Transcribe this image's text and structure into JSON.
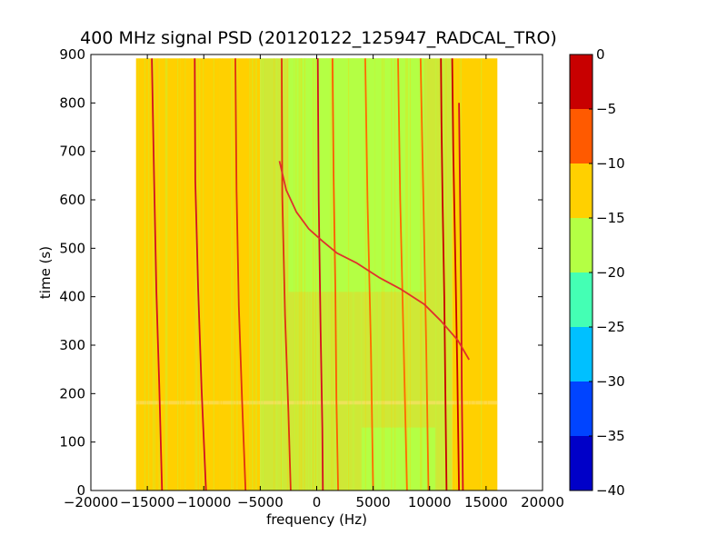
{
  "chart_data": {
    "type": "heatmap",
    "title": "400 MHz signal PSD (20120122_125947_RADCAL_TRO)",
    "xlabel": "frequency (Hz)",
    "ylabel": "time (s)",
    "xlim": [
      -20000,
      20000
    ],
    "ylim": [
      0,
      900
    ],
    "x_ticks": [
      -20000,
      -15000,
      -10000,
      -5000,
      0,
      5000,
      10000,
      15000,
      20000
    ],
    "y_ticks": [
      0,
      100,
      200,
      300,
      400,
      500,
      600,
      700,
      800,
      900
    ],
    "data_extent": {
      "x": [
        -16000,
        16000
      ],
      "y": [
        0,
        892
      ]
    },
    "colorbar": {
      "range": [
        -40,
        0
      ],
      "ticks": [
        0,
        -5,
        -10,
        -15,
        -20,
        -25,
        -30,
        -35,
        -40
      ],
      "levels": [
        {
          "from": -40,
          "to": -35,
          "color": "#0000c8"
        },
        {
          "from": -35,
          "to": -30,
          "color": "#0044ff"
        },
        {
          "from": -30,
          "to": -25,
          "color": "#00c0ff"
        },
        {
          "from": -25,
          "to": -20,
          "color": "#44ffb4"
        },
        {
          "from": -20,
          "to": -15,
          "color": "#b4ff44"
        },
        {
          "from": -15,
          "to": -10,
          "color": "#ffd000"
        },
        {
          "from": -10,
          "to": -5,
          "color": "#ff5a00"
        },
        {
          "from": -5,
          "to": 0,
          "color": "#c80000"
        }
      ]
    },
    "background_regions": [
      {
        "x": [
          -16000,
          -5000
        ],
        "y": [
          0,
          892
        ],
        "color": "#ffd000"
      },
      {
        "x": [
          -5000,
          12000
        ],
        "y": [
          0,
          892
        ],
        "color": "#cfe836"
      },
      {
        "x": [
          -2500,
          9500
        ],
        "y": [
          410,
          892
        ],
        "color": "#b4ff44"
      },
      {
        "x": [
          4000,
          10500
        ],
        "y": [
          0,
          130
        ],
        "color": "#b4ff44"
      },
      {
        "x": [
          12000,
          16000
        ],
        "y": [
          0,
          892
        ],
        "color": "#ffd000"
      }
    ],
    "tracks": [
      {
        "color": "#d41020",
        "points": [
          [
            -14600,
            892
          ],
          [
            -14400,
            640
          ],
          [
            -14200,
            410
          ],
          [
            -13950,
            220
          ],
          [
            -13700,
            0
          ]
        ]
      },
      {
        "color": "#d41020",
        "points": [
          [
            -10800,
            892
          ],
          [
            -10750,
            640
          ],
          [
            -10500,
            420
          ],
          [
            -10200,
            210
          ],
          [
            -9800,
            0
          ]
        ]
      },
      {
        "color": "#e03010",
        "points": [
          [
            -7200,
            892
          ],
          [
            -7100,
            620
          ],
          [
            -6900,
            380
          ],
          [
            -6600,
            180
          ],
          [
            -6300,
            0
          ]
        ]
      },
      {
        "color": "#e03010",
        "points": [
          [
            -3100,
            892
          ],
          [
            -3050,
            610
          ],
          [
            -2800,
            360
          ],
          [
            -2500,
            160
          ],
          [
            -2300,
            0
          ]
        ]
      },
      {
        "color": "#d41020",
        "points": [
          [
            100,
            892
          ],
          [
            180,
            600
          ],
          [
            350,
            330
          ],
          [
            500,
            130
          ],
          [
            550,
            0
          ]
        ]
      },
      {
        "color": "#ff5a00",
        "points": [
          [
            1400,
            892
          ],
          [
            1500,
            650
          ],
          [
            1650,
            420
          ],
          [
            1750,
            190
          ],
          [
            1900,
            0
          ]
        ]
      },
      {
        "color": "#ff6a00",
        "points": [
          [
            4300,
            892
          ],
          [
            4500,
            600
          ],
          [
            4800,
            300
          ],
          [
            5000,
            0
          ]
        ]
      },
      {
        "color": "#ff6a00",
        "points": [
          [
            7200,
            892
          ],
          [
            7400,
            600
          ],
          [
            7700,
            300
          ],
          [
            8000,
            0
          ]
        ]
      },
      {
        "color": "#ff6a00",
        "points": [
          [
            9200,
            892
          ],
          [
            9450,
            600
          ],
          [
            9700,
            300
          ],
          [
            9900,
            0
          ]
        ]
      },
      {
        "color": "#c80000",
        "points": [
          [
            11000,
            892
          ],
          [
            11050,
            760
          ],
          [
            11150,
            600
          ],
          [
            11300,
            400
          ],
          [
            11400,
            200
          ],
          [
            11500,
            0
          ]
        ]
      },
      {
        "color": "#c80000",
        "points": [
          [
            12000,
            892
          ],
          [
            12100,
            700
          ],
          [
            12300,
            450
          ],
          [
            12450,
            250
          ],
          [
            12600,
            0
          ]
        ]
      },
      {
        "color": "#d41020",
        "points": [
          [
            12600,
            800
          ],
          [
            12700,
            600
          ],
          [
            12800,
            400
          ],
          [
            12850,
            200
          ],
          [
            12950,
            0
          ]
        ]
      },
      {
        "color": "#e0302c",
        "points": [
          [
            -3300,
            680
          ],
          [
            -2700,
            620
          ],
          [
            -1800,
            575
          ],
          [
            -700,
            540
          ],
          [
            500,
            515
          ],
          [
            1800,
            490
          ],
          [
            3500,
            470
          ],
          [
            5500,
            440
          ],
          [
            7500,
            415
          ],
          [
            9500,
            385
          ],
          [
            11000,
            350
          ],
          [
            12500,
            310
          ],
          [
            13500,
            270
          ]
        ]
      }
    ]
  }
}
